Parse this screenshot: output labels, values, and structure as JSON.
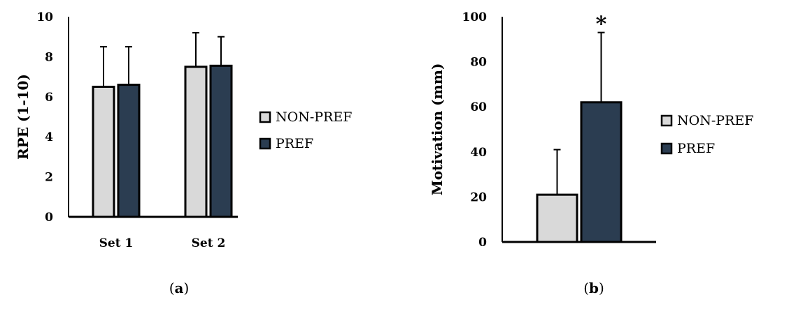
{
  "colors": {
    "non_pref": "#d9d9d9",
    "pref": "#2b3d51",
    "stroke": "#000000"
  },
  "chart_data": [
    {
      "type": "bar",
      "panel_label": "a",
      "ylabel": "RPE (1-10)",
      "ylim": [
        0,
        10
      ],
      "yticks": [
        0,
        2,
        4,
        6,
        8,
        10
      ],
      "categories": [
        "Set 1",
        "Set 2"
      ],
      "series": [
        {
          "name": "NON-PREF",
          "color_key": "non_pref",
          "values": [
            6.5,
            7.5
          ],
          "error": [
            2.0,
            1.7
          ]
        },
        {
          "name": "PREF",
          "color_key": "pref",
          "values": [
            6.6,
            7.55
          ],
          "error": [
            1.9,
            1.45
          ]
        }
      ],
      "legend": [
        "NON-PREF",
        "PREF"
      ],
      "legend_placement": "right",
      "annotations": []
    },
    {
      "type": "bar",
      "panel_label": "b",
      "ylabel": "Motivation (mm)",
      "ylim": [
        0,
        100
      ],
      "yticks": [
        0,
        20,
        40,
        60,
        80,
        100
      ],
      "categories": [
        ""
      ],
      "series": [
        {
          "name": "NON-PREF",
          "color_key": "non_pref",
          "values": [
            21
          ],
          "error": [
            20
          ]
        },
        {
          "name": "PREF",
          "color_key": "pref",
          "values": [
            62
          ],
          "error": [
            31
          ]
        }
      ],
      "legend": [
        "NON-PREF",
        "PREF"
      ],
      "legend_placement": "right",
      "annotations": [
        {
          "text": "*",
          "series": 1,
          "category": 0
        }
      ]
    }
  ]
}
